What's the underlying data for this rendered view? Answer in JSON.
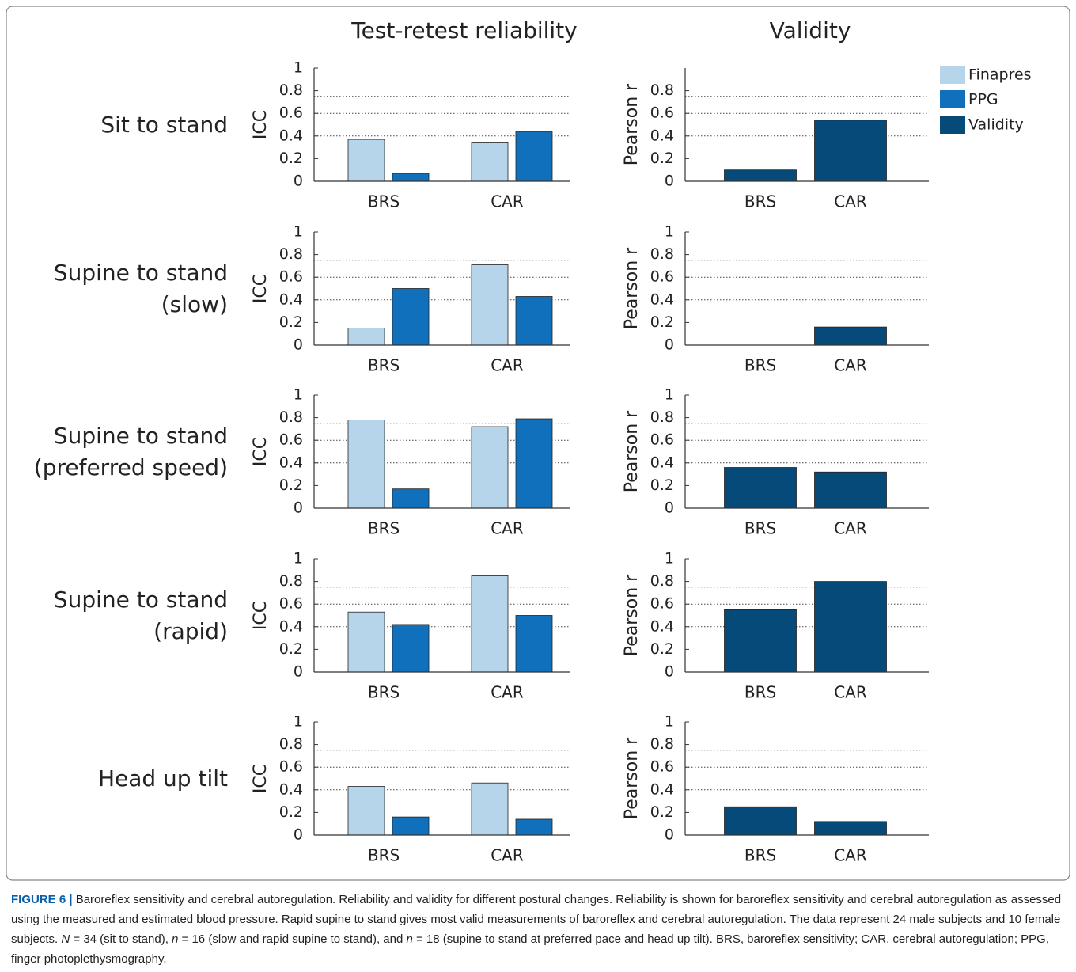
{
  "column_titles": [
    "Test-retest reliability",
    "Validity"
  ],
  "row_labels": [
    [
      "Sit to stand"
    ],
    [
      "Supine to stand",
      "(slow)"
    ],
    [
      "Supine to stand",
      "(preferred speed)"
    ],
    [
      "Supine to stand",
      "(rapid)"
    ],
    [
      "Head up tilt"
    ]
  ],
  "caption": {
    "label": "FIGURE 6 |",
    "parts": [
      " Baroreflex sensitivity and cerebral autoregulation. Reliability and validity for different postural changes. Reliability is shown for baroreflex sensitivity and cerebral autoregulation as assessed using the measured and estimated blood pressure. Rapid supine to stand gives most valid measurements of baroreflex and cerebral autoregulation. The data represent 24 male subjects and 10 female subjects. ",
      "N",
      " = 34 (sit to stand), ",
      "n",
      " = 16 (slow and rapid supine to stand), and ",
      "n",
      " = 18 (supine to stand at preferred pace and head up tilt). BRS, baroreflex sensitivity; CAR, cerebral autoregulation; PPG, finger photoplethysmography."
    ]
  },
  "chart_data": [
    {
      "type": "bar",
      "ylabel": "ICC",
      "categories": [
        "BRS",
        "CAR"
      ],
      "series": [
        {
          "name": "Finapres",
          "color": "#b6d5ea",
          "values": [
            0.37,
            0.34
          ]
        },
        {
          "name": "PPG",
          "color": "#1170bb",
          "values": [
            0.07,
            0.44
          ]
        }
      ],
      "ylim": [
        0,
        1
      ],
      "yticks": [
        0,
        0.2,
        0.4,
        0.6,
        0.8,
        1
      ],
      "reference_lines": [
        0.4,
        0.6,
        0.75
      ]
    },
    {
      "type": "bar",
      "ylabel": "Pearson r",
      "categories": [
        "BRS",
        "CAR"
      ],
      "series": [
        {
          "name": "Validity",
          "color": "#064a7a",
          "values": [
            0.1,
            0.54
          ]
        }
      ],
      "ylim": [
        0,
        1
      ],
      "yticks": [
        0,
        0.2,
        0.4,
        0.6,
        0.8
      ],
      "reference_lines": [
        0.4,
        0.6,
        0.75
      ]
    },
    {
      "type": "bar",
      "ylabel": "ICC",
      "categories": [
        "BRS",
        "CAR"
      ],
      "series": [
        {
          "name": "Finapres",
          "color": "#b6d5ea",
          "values": [
            0.15,
            0.71
          ]
        },
        {
          "name": "PPG",
          "color": "#1170bb",
          "values": [
            0.5,
            0.43
          ]
        }
      ],
      "ylim": [
        0,
        1
      ],
      "yticks": [
        0,
        0.2,
        0.4,
        0.6,
        0.8,
        1
      ],
      "reference_lines": [
        0.4,
        0.6,
        0.75
      ]
    },
    {
      "type": "bar",
      "ylabel": "Pearson r",
      "categories": [
        "BRS",
        "CAR"
      ],
      "series": [
        {
          "name": "Validity",
          "color": "#064a7a",
          "values": [
            0,
            0.16
          ]
        }
      ],
      "ylim": [
        0,
        1
      ],
      "yticks": [
        0,
        0.2,
        0.4,
        0.6,
        0.8,
        1
      ],
      "reference_lines": [
        0.4,
        0.6,
        0.75
      ]
    },
    {
      "type": "bar",
      "ylabel": "ICC",
      "categories": [
        "BRS",
        "CAR"
      ],
      "series": [
        {
          "name": "Finapres",
          "color": "#b6d5ea",
          "values": [
            0.78,
            0.72
          ]
        },
        {
          "name": "PPG",
          "color": "#1170bb",
          "values": [
            0.17,
            0.79
          ]
        }
      ],
      "ylim": [
        0,
        1
      ],
      "yticks": [
        0,
        0.2,
        0.4,
        0.6,
        0.8,
        1
      ],
      "reference_lines": [
        0.4,
        0.6,
        0.75
      ]
    },
    {
      "type": "bar",
      "ylabel": "Pearson r",
      "categories": [
        "BRS",
        "CAR"
      ],
      "series": [
        {
          "name": "Validity",
          "color": "#064a7a",
          "values": [
            0.36,
            0.32
          ]
        }
      ],
      "ylim": [
        0,
        1
      ],
      "yticks": [
        0,
        0.2,
        0.4,
        0.6,
        0.8,
        1
      ],
      "reference_lines": [
        0.4,
        0.6,
        0.75
      ]
    },
    {
      "type": "bar",
      "ylabel": "ICC",
      "categories": [
        "BRS",
        "CAR"
      ],
      "series": [
        {
          "name": "Finapres",
          "color": "#b6d5ea",
          "values": [
            0.53,
            0.85
          ]
        },
        {
          "name": "PPG",
          "color": "#1170bb",
          "values": [
            0.42,
            0.5
          ]
        }
      ],
      "ylim": [
        0,
        1
      ],
      "yticks": [
        0,
        0.2,
        0.4,
        0.6,
        0.8,
        1
      ],
      "reference_lines": [
        0.4,
        0.6,
        0.75
      ]
    },
    {
      "type": "bar",
      "ylabel": "Pearson r",
      "categories": [
        "BRS",
        "CAR"
      ],
      "series": [
        {
          "name": "Validity",
          "color": "#064a7a",
          "values": [
            0.55,
            0.8
          ]
        }
      ],
      "ylim": [
        0,
        1
      ],
      "yticks": [
        0,
        0.2,
        0.4,
        0.6,
        0.8,
        1
      ],
      "reference_lines": [
        0.4,
        0.6,
        0.75
      ]
    },
    {
      "type": "bar",
      "ylabel": "ICC",
      "categories": [
        "BRS",
        "CAR"
      ],
      "series": [
        {
          "name": "Finapres",
          "color": "#b6d5ea",
          "values": [
            0.43,
            0.46
          ]
        },
        {
          "name": "PPG",
          "color": "#1170bb",
          "values": [
            0.16,
            0.14
          ]
        }
      ],
      "ylim": [
        0,
        1
      ],
      "yticks": [
        0,
        0.2,
        0.4,
        0.6,
        0.8,
        1
      ],
      "reference_lines": [
        0.4,
        0.6,
        0.75
      ]
    },
    {
      "type": "bar",
      "ylabel": "Pearson r",
      "categories": [
        "BRS",
        "CAR"
      ],
      "series": [
        {
          "name": "Validity",
          "color": "#064a7a",
          "values": [
            0.25,
            0.12
          ]
        }
      ],
      "ylim": [
        0,
        1
      ],
      "yticks": [
        0,
        0.2,
        0.4,
        0.6,
        0.8,
        1
      ],
      "reference_lines": [
        0.4,
        0.6,
        0.75
      ]
    }
  ]
}
